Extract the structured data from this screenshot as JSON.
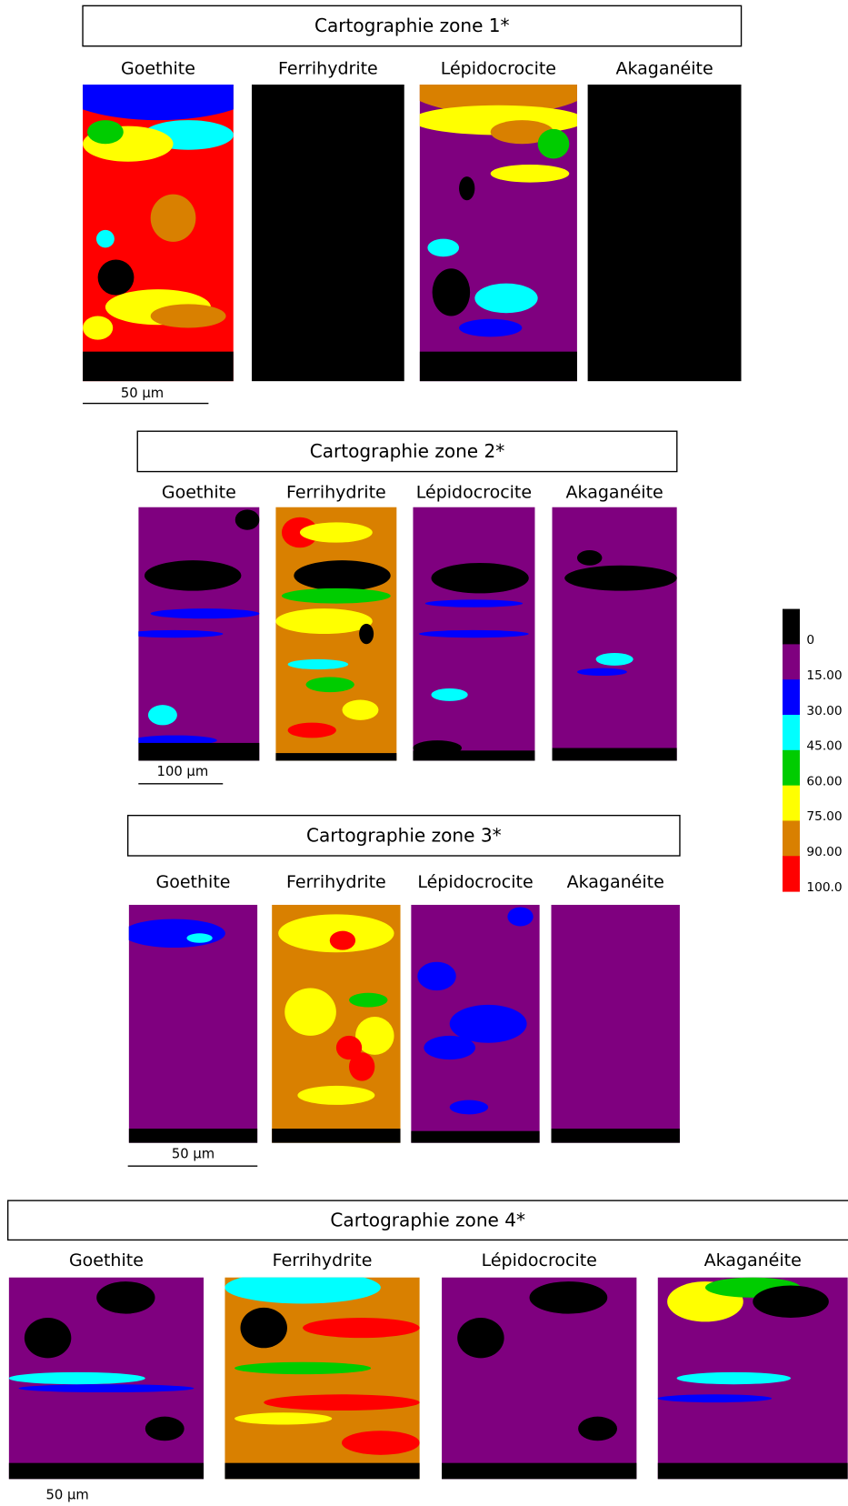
{
  "zones": [
    {
      "title": "Cartographie zone 1*",
      "panels": [
        "Goethite",
        "Ferrihydrite",
        "Lépidocrocite",
        "Akaganéite"
      ],
      "scale_bar": "50 µm"
    },
    {
      "title": "Cartographie zone 2*",
      "panels": [
        "Goethite",
        "Ferrihydrite",
        "Lépidocrocite",
        "Akaganéite"
      ],
      "scale_bar": "100 µm"
    },
    {
      "title": "Cartographie zone 3*",
      "panels": [
        "Goethite",
        "Ferrihydrite",
        "Lépidocrocite",
        "Akaganéite"
      ],
      "scale_bar": "50 µm"
    },
    {
      "title": "Cartographie zone 4*",
      "panels": [
        "Goethite",
        "Ferrihydrite",
        "Lépidocrocite",
        "Akaganéite"
      ],
      "scale_bar": "50 µm"
    }
  ],
  "legend": {
    "labels": [
      "0",
      "15.00",
      "30.00",
      "45.00",
      "60.00",
      "75.00",
      "90.00",
      "100.0"
    ],
    "colors": [
      "#000000",
      "#7f007f",
      "#0000ff",
      "#00ffff",
      "#00cc00",
      "#ffff00",
      "#d98000",
      "#ff0000"
    ]
  }
}
